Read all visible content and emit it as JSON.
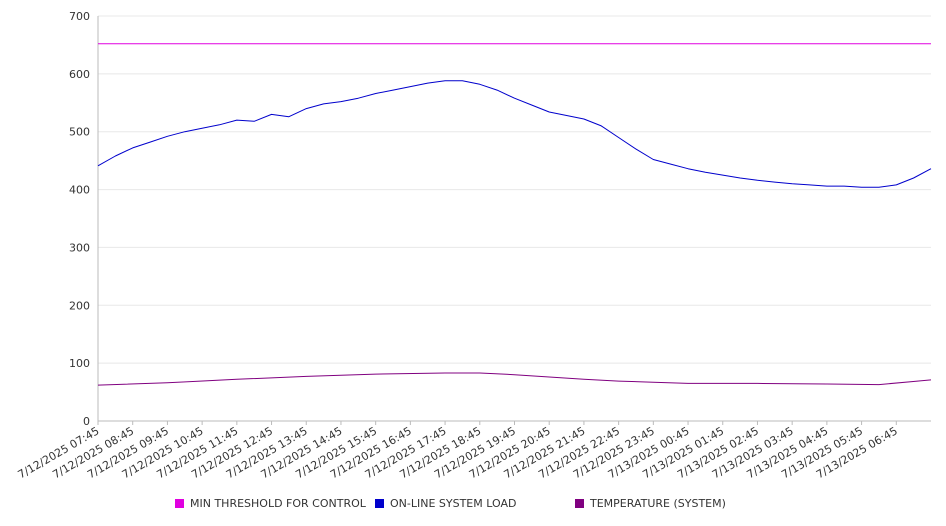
{
  "chart_data": {
    "type": "line",
    "ylim": [
      0,
      700
    ],
    "yticks": [
      0,
      100,
      200,
      300,
      400,
      500,
      600,
      700
    ],
    "grid": true,
    "legend_position": "bottom",
    "x_tick_labels": [
      "7/12/2025 07:45",
      "7/12/2025 08:45",
      "7/12/2025 09:45",
      "7/12/2025 10:45",
      "7/12/2025 11:45",
      "7/12/2025 12:45",
      "7/12/2025 13:45",
      "7/12/2025 14:45",
      "7/12/2025 15:45",
      "7/12/2025 16:45",
      "7/12/2025 17:45",
      "7/12/2025 18:45",
      "7/12/2025 19:45",
      "7/12/2025 20:45",
      "7/12/2025 21:45",
      "7/12/2025 22:45",
      "7/12/2025 23:45",
      "7/13/2025 00:45",
      "7/13/2025 01:45",
      "7/13/2025 02:45",
      "7/13/2025 03:45",
      "7/13/2025 04:45",
      "7/13/2025 05:45",
      "7/13/2025 06:45"
    ],
    "x_range": [
      "7/12/2025 07:45",
      "7/13/2025 07:45"
    ],
    "series": [
      {
        "name": "MIN THRESHOLD FOR CONTROL",
        "color": "#e000e0",
        "x": [
          "7/12/2025 07:45",
          "7/13/2025 07:45"
        ],
        "values": [
          652,
          652
        ]
      },
      {
        "name": "ON-LINE SYSTEM LOAD",
        "color": "#0000cc",
        "x": [
          "7/12/2025 07:45",
          "7/12/2025 08:15",
          "7/12/2025 08:45",
          "7/12/2025 09:15",
          "7/12/2025 09:45",
          "7/12/2025 10:15",
          "7/12/2025 10:45",
          "7/12/2025 11:15",
          "7/12/2025 11:45",
          "7/12/2025 12:15",
          "7/12/2025 12:45",
          "7/12/2025 13:15",
          "7/12/2025 13:45",
          "7/12/2025 14:15",
          "7/12/2025 14:45",
          "7/12/2025 15:15",
          "7/12/2025 15:45",
          "7/12/2025 16:15",
          "7/12/2025 16:45",
          "7/12/2025 17:15",
          "7/12/2025 17:45",
          "7/12/2025 18:15",
          "7/12/2025 18:45",
          "7/12/2025 19:15",
          "7/12/2025 19:45",
          "7/12/2025 20:15",
          "7/12/2025 20:45",
          "7/12/2025 21:15",
          "7/12/2025 21:45",
          "7/12/2025 22:15",
          "7/12/2025 22:45",
          "7/12/2025 23:15",
          "7/12/2025 23:45",
          "7/13/2025 00:15",
          "7/13/2025 00:45",
          "7/13/2025 01:15",
          "7/13/2025 01:45",
          "7/13/2025 02:15",
          "7/13/2025 02:45",
          "7/13/2025 03:15",
          "7/13/2025 03:45",
          "7/13/2025 04:15",
          "7/13/2025 04:45",
          "7/13/2025 05:15",
          "7/13/2025 05:45",
          "7/13/2025 06:15",
          "7/13/2025 06:45",
          "7/13/2025 07:15",
          "7/13/2025 07:45"
        ],
        "values": [
          441,
          458,
          472,
          482,
          492,
          500,
          506,
          512,
          520,
          518,
          530,
          526,
          540,
          548,
          552,
          558,
          566,
          572,
          578,
          584,
          588,
          588,
          582,
          572,
          558,
          546,
          534,
          528,
          522,
          510,
          490,
          470,
          452,
          444,
          436,
          430,
          425,
          420,
          416,
          413,
          410,
          408,
          406,
          406,
          404,
          404,
          408,
          420,
          436
        ]
      },
      {
        "name": "TEMPERATURE (SYSTEM)",
        "color": "#800080",
        "x": [
          "7/12/2025 07:45",
          "7/12/2025 09:45",
          "7/12/2025 11:45",
          "7/12/2025 13:45",
          "7/12/2025 15:45",
          "7/12/2025 17:45",
          "7/12/2025 18:45",
          "7/12/2025 19:45",
          "7/12/2025 20:45",
          "7/12/2025 21:45",
          "7/12/2025 22:45",
          "7/12/2025 23:45",
          "7/13/2025 00:45",
          "7/13/2025 02:45",
          "7/13/2025 04:45",
          "7/13/2025 06:15",
          "7/13/2025 07:45"
        ],
        "values": [
          62,
          66,
          72,
          77,
          81,
          83,
          83,
          80,
          76,
          72,
          69,
          67,
          65,
          65,
          64,
          63,
          71
        ]
      }
    ]
  }
}
